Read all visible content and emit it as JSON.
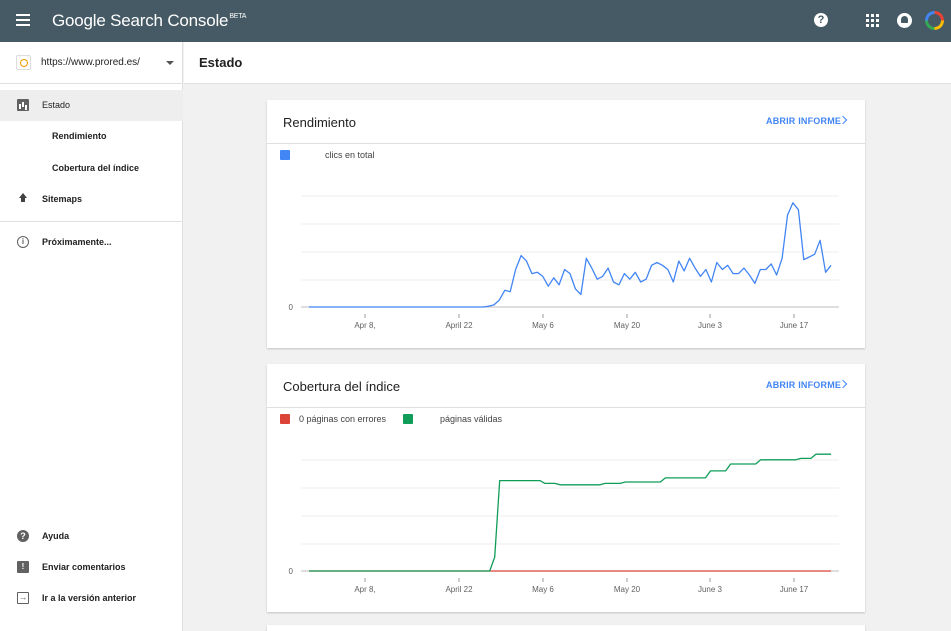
{
  "topbar": {
    "brand": "Google Search Console",
    "brand_badge": "BETA",
    "help_glyph": "?"
  },
  "sidebar": {
    "property_url": "https://www.prored.es/",
    "items": [
      {
        "label": "Estado",
        "icon": "bar-chart-icon"
      },
      {
        "label": "Rendimiento"
      },
      {
        "label": "Cobertura del índice"
      },
      {
        "label": "Sitemaps",
        "icon": "upload-icon"
      },
      {
        "label": "Próximamente...",
        "icon": "info-icon"
      }
    ],
    "footer": [
      {
        "label": "Ayuda",
        "icon": "help-icon"
      },
      {
        "label": "Enviar comentarios",
        "icon": "feedback-icon"
      },
      {
        "label": "Ir a la versión anterior",
        "icon": "exit-icon"
      }
    ]
  },
  "main": {
    "title": "Estado"
  },
  "cards": [
    {
      "title": "Rendimiento",
      "link": "ABRIR INFORME"
    },
    {
      "title": "Cobertura del índice",
      "link": "ABRIR INFORME"
    }
  ],
  "colors": {
    "topbar": "#455a64",
    "clicks": "#4285f4",
    "errors": "#db4437",
    "valid": "#0f9d58",
    "link": "#4285f4"
  },
  "chart_data": [
    {
      "type": "line",
      "legend": [
        {
          "name": "clics en total",
          "color": "#4285f4"
        }
      ],
      "x_tick_labels": [
        "Apr 8,",
        "April 22",
        "May 6",
        "May 20",
        "June 3",
        "June 17"
      ],
      "y_tick_labels": [
        "0"
      ],
      "grid": true,
      "series": [
        {
          "name": "clics en total",
          "values": [
            0,
            0,
            0,
            0,
            0,
            0,
            0,
            0,
            0,
            0,
            0,
            0,
            0,
            0,
            0,
            0,
            0,
            0,
            0,
            0,
            0,
            0,
            0,
            0,
            0,
            0,
            0,
            0,
            0,
            0,
            0,
            0,
            0,
            0.5,
            1.5,
            5,
            12,
            11,
            27,
            37,
            33,
            24,
            25,
            22,
            15,
            21,
            16,
            27,
            24,
            13,
            9,
            35,
            28,
            20,
            22,
            28,
            18,
            16,
            24,
            20,
            25,
            18,
            20,
            30,
            32,
            30,
            27,
            18,
            33,
            26,
            35,
            28,
            22,
            27,
            18,
            32,
            27,
            30,
            24,
            24,
            28,
            23,
            17,
            27,
            27,
            31,
            23,
            35,
            66,
            75,
            70,
            34,
            36,
            38,
            48,
            25,
            30
          ],
          "ylim": [
            0,
            100
          ]
        }
      ]
    },
    {
      "type": "line",
      "legend": [
        {
          "name": "0 páginas con errores",
          "color": "#db4437"
        },
        {
          "name": "páginas válidas",
          "color": "#0f9d58"
        }
      ],
      "x_tick_labels": [
        "Apr 8,",
        "April 22",
        "May 6",
        "May 20",
        "June 3",
        "June 17"
      ],
      "y_tick_labels": [
        "0"
      ],
      "grid": true,
      "series": [
        {
          "name": "0 páginas con errores",
          "values": [
            0,
            0
          ],
          "color": "#db4437"
        },
        {
          "name": "páginas válidas",
          "values": [
            0,
            0,
            0,
            0,
            0,
            0,
            0,
            0,
            0,
            0,
            0,
            0,
            0,
            0,
            0,
            0,
            0,
            0,
            0,
            0,
            0,
            0,
            0,
            0,
            0,
            0,
            0,
            0,
            0,
            0,
            0,
            0,
            0,
            0,
            0,
            0,
            0,
            10,
            65,
            65,
            65,
            65,
            65,
            65,
            65,
            65,
            65,
            63,
            63,
            63,
            62,
            62,
            62,
            62,
            62,
            62,
            62,
            62,
            62,
            63,
            63,
            63,
            63,
            64,
            64,
            64,
            64,
            64,
            64,
            64,
            64,
            67,
            67,
            67,
            67,
            67,
            67,
            67,
            67,
            67,
            72,
            72,
            72,
            72,
            77,
            77,
            77,
            77,
            77,
            77,
            80,
            80,
            80,
            80,
            80,
            80,
            80,
            80,
            81,
            81,
            81,
            84,
            84,
            84,
            84
          ],
          "color": "#0f9d58",
          "ylim": [
            0,
            100
          ]
        }
      ]
    }
  ]
}
